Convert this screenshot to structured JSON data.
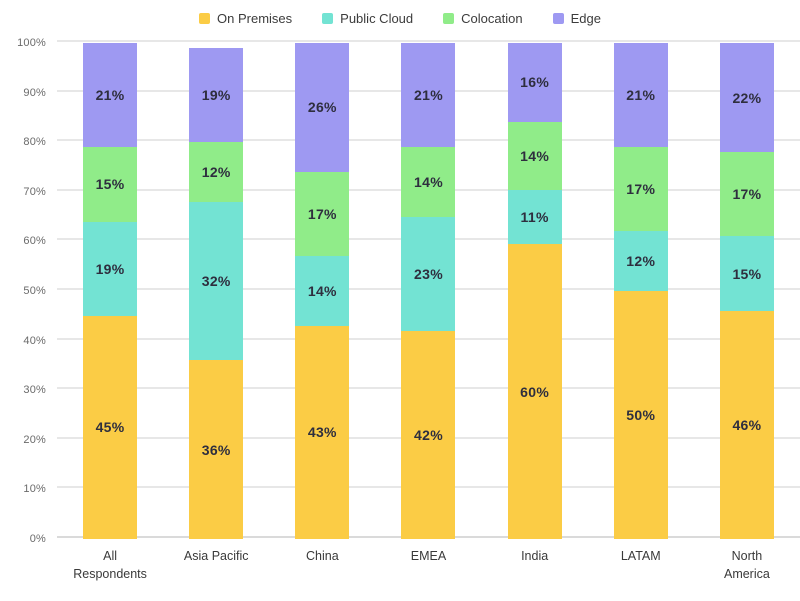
{
  "chart_data": {
    "type": "bar",
    "stacked": true,
    "title": "",
    "xlabel": "",
    "ylabel": "",
    "ylim": [
      0,
      100
    ],
    "grid": true,
    "legend_position": "top",
    "label_suffix": "%",
    "y_ticks": [
      "0%",
      "10%",
      "20%",
      "30%",
      "40%",
      "50%",
      "60%",
      "70%",
      "80%",
      "90%",
      "100%"
    ],
    "categories": [
      "All Respondents",
      "Asia Pacific",
      "China",
      "EMEA",
      "India",
      "LATAM",
      "North America"
    ],
    "series": [
      {
        "name": "On Premises",
        "color": "#FBCC45",
        "values": [
          45,
          36,
          43,
          42,
          60,
          50,
          46
        ]
      },
      {
        "name": "Public Cloud",
        "color": "#73E3D3",
        "values": [
          19,
          32,
          14,
          23,
          11,
          12,
          15
        ]
      },
      {
        "name": "Colocation",
        "color": "#90EC89",
        "values": [
          15,
          12,
          17,
          14,
          14,
          17,
          17
        ]
      },
      {
        "name": "Edge",
        "color": "#9E99F2",
        "values": [
          21,
          19,
          26,
          21,
          16,
          21,
          22
        ]
      }
    ]
  },
  "colors": {
    "background": "#ffffff",
    "gridline": "#e7e7e7",
    "axis_label": "#6a6a6a",
    "category_label": "#3a3a3a",
    "data_label": "#2e2e3e",
    "legend_label": "#3c3c3c"
  }
}
